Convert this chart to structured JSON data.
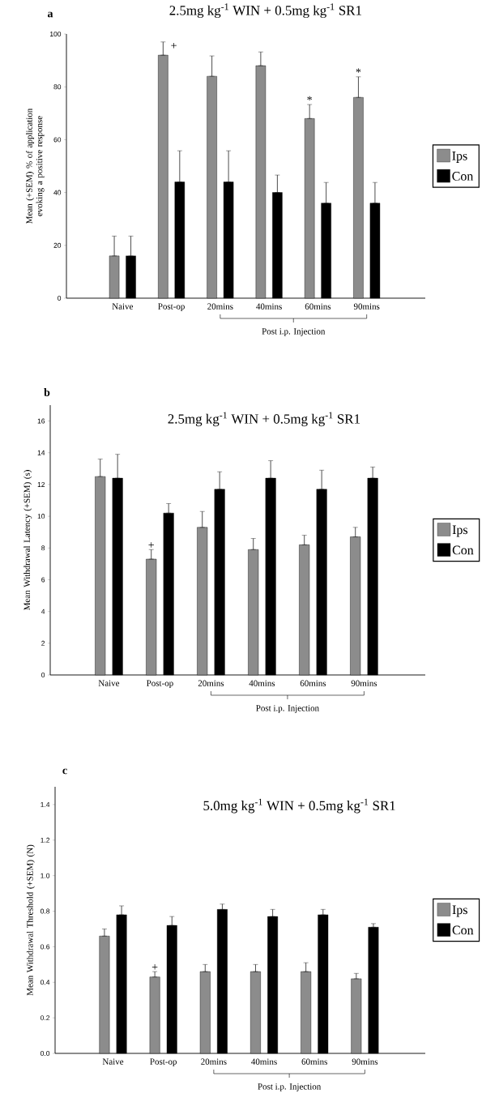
{
  "chart_data": [
    {
      "type": "bar",
      "title": "2.5mg kg$^{-1}$ WIN + 0.5mg kg$^{-1}$ SR1",
      "ylabel": "Mean (+SEM) % of application evoking a positive response",
      "categories": [
        "Naive",
        "Post-op",
        "20mins",
        "40mins",
        "60mins",
        "90mins"
      ],
      "series": [
        {
          "name": "Ips",
          "color": "#8c8c8c",
          "values": [
            16,
            92,
            84,
            88,
            68,
            76
          ],
          "errors": [
            [
              16,
              23.5
            ],
            [
              92,
              97
            ],
            [
              84,
              91.7
            ],
            [
              88,
              93.2
            ],
            [
              68,
              73.3
            ],
            [
              76,
              83.8
            ]
          ]
        },
        {
          "name": "Con",
          "color": "#000000",
          "values": [
            16,
            44,
            44,
            40,
            36,
            36
          ],
          "errors": [
            [
              16,
              23.5
            ],
            [
              44,
              55.8
            ],
            [
              44,
              55.8
            ],
            [
              40,
              46.6
            ],
            [
              36,
              43.8
            ],
            [
              36,
              43.8
            ]
          ]
        }
      ],
      "ylim": [
        0,
        100
      ],
      "yticks": [
        0,
        20,
        40,
        60,
        80,
        100
      ],
      "legend": "right",
      "annotations": [
        "a",
        "+",
        "*",
        "*",
        "Post i.p. Injection"
      ]
    },
    {
      "type": "bar",
      "title": "2.5mg kg$^{-1}$ WIN + 0.5mg kg$^{-1}$ SR1",
      "ylabel": "Mean Withdrawal Latency (+SEM) (s)",
      "categories": [
        "Naive",
        "Post-op",
        "20mins",
        "40mins",
        "60mins",
        "90mins"
      ],
      "series": [
        {
          "name": "Ips",
          "color": "#8c8c8c",
          "values": [
            12.5,
            7.3,
            9.3,
            7.9,
            8.2,
            8.7
          ],
          "errors": [
            [
              12.5,
              13.6
            ],
            [
              7.3,
              7.9
            ],
            [
              9.3,
              10.3
            ],
            [
              7.9,
              8.6
            ],
            [
              8.2,
              8.8
            ],
            [
              8.7,
              9.3
            ]
          ]
        },
        {
          "name": "Con",
          "color": "#000000",
          "values": [
            12.4,
            10.2,
            11.7,
            12.4,
            11.7,
            12.4
          ],
          "errors": [
            [
              12.4,
              13.9
            ],
            [
              10.2,
              10.8
            ],
            [
              11.7,
              12.8
            ],
            [
              12.4,
              13.5
            ],
            [
              11.7,
              12.9
            ],
            [
              12.4,
              13.1
            ]
          ]
        }
      ],
      "ylim": [
        0,
        17
      ],
      "yticks": [
        0,
        2,
        4,
        6,
        8,
        10,
        12,
        14,
        16
      ],
      "legend": "right",
      "annotations": [
        "b",
        {
          "text": "+",
          "x": "Post-op",
          "y": 7.9
        },
        "Post i.p. Injection"
      ]
    },
    {
      "type": "bar",
      "title": "5.0mg kg$^{-1}$ WIN + 0.5mg kg$^{-1}$ SR1",
      "ylabel": "Mean Withdrawal Threshold (+SEM) (N)",
      "categories": [
        "Naive",
        "Post-op",
        "20mins",
        "40mins",
        "60mins",
        "90mins"
      ],
      "series": [
        {
          "name": "Ips",
          "color": "#8c8c8c",
          "values": [
            0.66,
            0.43,
            0.46,
            0.46,
            0.46,
            0.42
          ],
          "errors": [
            [
              0.66,
              0.7
            ],
            [
              0.43,
              0.46
            ],
            [
              0.46,
              0.5
            ],
            [
              0.46,
              0.5
            ],
            [
              0.46,
              0.51
            ],
            [
              0.42,
              0.45
            ]
          ]
        },
        {
          "name": "Con",
          "color": "#000000",
          "values": [
            0.78,
            0.72,
            0.81,
            0.77,
            0.78,
            0.71
          ],
          "errors": [
            [
              0.78,
              0.83
            ],
            [
              0.72,
              0.77
            ],
            [
              0.81,
              0.84
            ],
            [
              0.77,
              0.81
            ],
            [
              0.78,
              0.81
            ],
            [
              0.71,
              0.73
            ]
          ]
        }
      ],
      "ylim": [
        0,
        1.5
      ],
      "yticks": [
        {
          "value": 0,
          "label": "0.0"
        },
        {
          "value": 0.2,
          "label": "0.2"
        },
        {
          "value": 0.4,
          "label": "0.4"
        },
        {
          "value": 0.6,
          "label": "0.6"
        },
        {
          "value": 0.8,
          "label": "0.8"
        },
        {
          "value": 1.0,
          "label": "1.0"
        },
        {
          "value": 1.2,
          "label": "1.2"
        },
        {
          "value": 1.4,
          "label": "1.4"
        }
      ],
      "legend": "right",
      "annotations": [
        "c",
        {
          "text": "+",
          "x": "Post-op",
          "y": 0.46
        },
        "Post i.p. Injection"
      ]
    }
  ]
}
